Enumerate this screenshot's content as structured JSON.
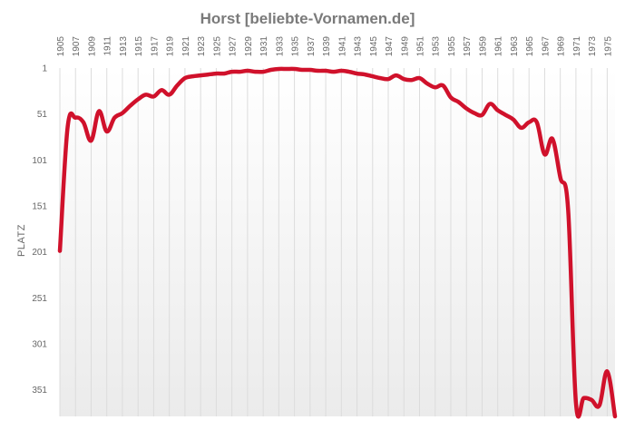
{
  "chart_data": {
    "type": "line",
    "title": "Horst [beliebte-Vornamen.de]",
    "ylabel": "PLATZ",
    "xlabel": "",
    "y_inverted": true,
    "ylim": [
      1,
      380
    ],
    "xlim": [
      1905,
      1976
    ],
    "x_ticks": [
      1905,
      1907,
      1909,
      1911,
      1913,
      1915,
      1917,
      1919,
      1921,
      1923,
      1925,
      1927,
      1929,
      1931,
      1933,
      1935,
      1937,
      1939,
      1941,
      1943,
      1945,
      1947,
      1949,
      1951,
      1953,
      1955,
      1957,
      1959,
      1961,
      1963,
      1965,
      1967,
      1969,
      1971,
      1973,
      1975
    ],
    "y_ticks": [
      1,
      51,
      101,
      151,
      201,
      251,
      301,
      351
    ],
    "grid": "vertical",
    "line_color": "#d0112b",
    "series": [
      {
        "name": "",
        "x": [
          1905,
          1906,
          1907,
          1908,
          1909,
          1910,
          1911,
          1912,
          1913,
          1914,
          1915,
          1916,
          1917,
          1918,
          1919,
          1920,
          1921,
          1922,
          1923,
          1924,
          1925,
          1926,
          1927,
          1928,
          1929,
          1930,
          1931,
          1932,
          1933,
          1934,
          1935,
          1936,
          1937,
          1938,
          1939,
          1940,
          1941,
          1942,
          1943,
          1944,
          1945,
          1946,
          1947,
          1948,
          1949,
          1950,
          1951,
          1952,
          1953,
          1954,
          1955,
          1956,
          1957,
          1958,
          1959,
          1960,
          1961,
          1962,
          1963,
          1964,
          1965,
          1966,
          1967,
          1968,
          1969,
          1970,
          1971,
          1972,
          1973,
          1974,
          1975,
          1976
        ],
        "values": [
          200,
          65,
          55,
          60,
          80,
          48,
          70,
          55,
          50,
          42,
          35,
          30,
          32,
          25,
          30,
          20,
          12,
          10,
          9,
          8,
          7,
          7,
          5,
          5,
          4,
          5,
          5,
          3,
          2,
          2,
          2,
          3,
          3,
          4,
          4,
          5,
          4,
          5,
          7,
          8,
          10,
          12,
          13,
          9,
          13,
          14,
          12,
          18,
          22,
          20,
          33,
          38,
          45,
          50,
          52,
          40,
          47,
          52,
          57,
          66,
          60,
          60,
          95,
          78,
          120,
          155,
          365,
          360,
          362,
          368,
          331,
          380
        ]
      }
    ]
  }
}
